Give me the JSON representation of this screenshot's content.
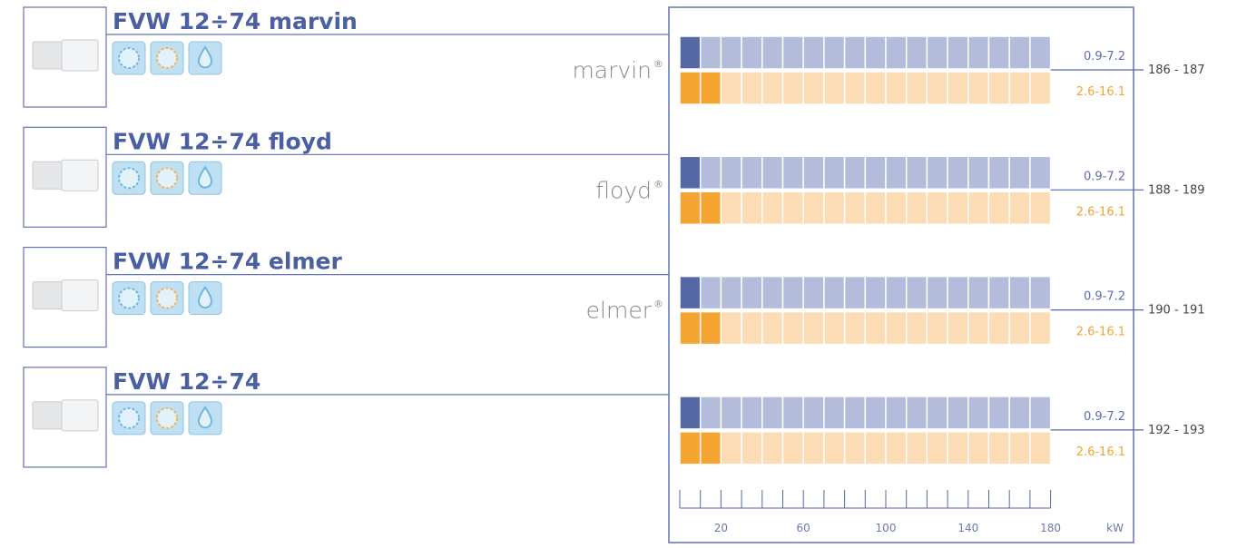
{
  "products": [
    {
      "title": "FVW 12÷74 marvin",
      "brand": "marvin",
      "brand_mark": "®",
      "cooling": "0.9-7.2",
      "heating": "2.6-16.1",
      "pages": "186 -  187"
    },
    {
      "title": "FVW 12÷74 floyd",
      "brand": "floyd",
      "brand_mark": "®",
      "cooling": "0.9-7.2",
      "heating": "2.6-16.1",
      "pages": "188 -  189"
    },
    {
      "title": "FVW 12÷74 elmer",
      "brand": "elmer",
      "brand_mark": "®",
      "cooling": "0.9-7.2",
      "heating": "2.6-16.1",
      "pages": "190 -  191"
    },
    {
      "title": "FVW 12÷74",
      "cooling": "0.9-7.2",
      "heating": "2.6-16.1",
      "pages": "192 -  193"
    }
  ],
  "scale": {
    "ticks": [
      "20",
      "60",
      "100",
      "140",
      "180"
    ],
    "unit": "kW"
  }
}
